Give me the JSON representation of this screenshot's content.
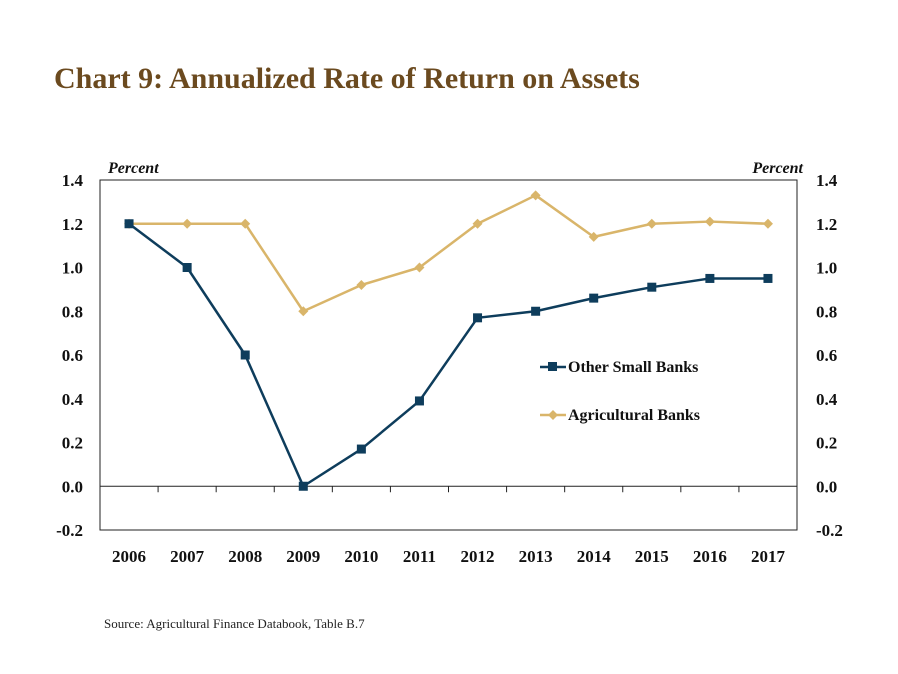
{
  "title": "Chart 9: Annualized Rate of Return on Assets",
  "source": "Source: Agricultural Finance Databook, Table B.7",
  "colors": {
    "title": "#6b4a1f",
    "other_small_banks": "#0e3d5c",
    "agricultural_banks": "#d9b56a"
  },
  "chart_data": {
    "type": "line",
    "title": "Chart 9: Annualized Rate of Return on Assets",
    "y_unit_left": "Percent",
    "y_unit_right": "Percent",
    "categories": [
      "2006",
      "2007",
      "2008",
      "2009",
      "2010",
      "2011",
      "2012",
      "2013",
      "2014",
      "2015",
      "2016",
      "2017"
    ],
    "y_ticks": [
      "1.4",
      "1.2",
      "1.0",
      "0.8",
      "0.6",
      "0.4",
      "0.2",
      "0.0",
      "-0.2"
    ],
    "ylim": [
      -0.2,
      1.4
    ],
    "grid": false,
    "legend_position": "center-right",
    "series": [
      {
        "name": "Other Small Banks",
        "marker": "square",
        "values": [
          1.2,
          1.0,
          0.6,
          0.0,
          0.17,
          0.39,
          0.77,
          0.8,
          0.86,
          0.91,
          0.95,
          0.95
        ]
      },
      {
        "name": "Agricultural Banks",
        "marker": "diamond",
        "values": [
          1.2,
          1.2,
          1.2,
          0.8,
          0.92,
          1.0,
          1.2,
          1.33,
          1.14,
          1.2,
          1.21,
          1.2
        ]
      }
    ]
  }
}
